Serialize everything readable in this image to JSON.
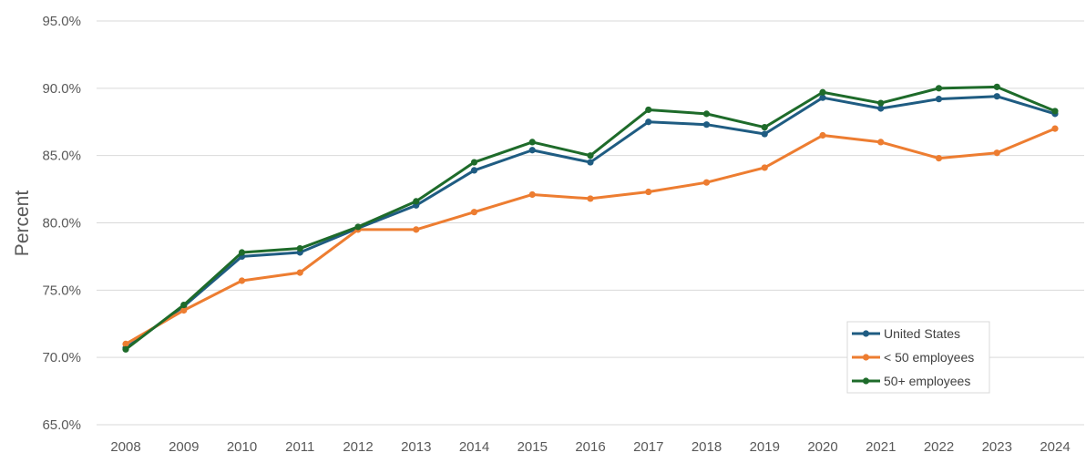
{
  "chart_data": {
    "type": "line",
    "title": "",
    "xlabel": "",
    "ylabel": "Percent",
    "ylim": [
      65,
      95
    ],
    "y_tick_labels": [
      "65.0%",
      "70.0%",
      "75.0%",
      "80.0%",
      "85.0%",
      "90.0%",
      "95.0%"
    ],
    "y_ticks": [
      65,
      70,
      75,
      80,
      85,
      90,
      95
    ],
    "categories": [
      "2008",
      "2009",
      "2010",
      "2011",
      "2012",
      "2013",
      "2014",
      "2015",
      "2016",
      "2017",
      "2018",
      "2019",
      "2020",
      "2021",
      "2022",
      "2023",
      "2024"
    ],
    "grid": "horizontal",
    "legend_position": "bottom-right",
    "series": [
      {
        "name": "United States",
        "color": "#1f5c82",
        "values": [
          70.7,
          73.8,
          77.5,
          77.8,
          79.6,
          81.3,
          83.9,
          85.4,
          84.5,
          87.5,
          87.3,
          86.6,
          89.3,
          88.5,
          89.2,
          89.4,
          88.1
        ]
      },
      {
        "name": "< 50 employees",
        "color": "#ed7d31",
        "values": [
          71.0,
          73.5,
          75.7,
          76.3,
          79.5,
          79.5,
          80.8,
          82.1,
          81.8,
          82.3,
          83.0,
          84.1,
          86.5,
          86.0,
          84.8,
          85.2,
          87.0
        ]
      },
      {
        "name": "50+ employees",
        "color": "#1e6b2a",
        "values": [
          70.6,
          73.9,
          77.8,
          78.1,
          79.7,
          81.6,
          84.5,
          86.0,
          85.0,
          88.4,
          88.1,
          87.1,
          89.7,
          88.9,
          90.0,
          90.1,
          88.3
        ]
      }
    ]
  }
}
